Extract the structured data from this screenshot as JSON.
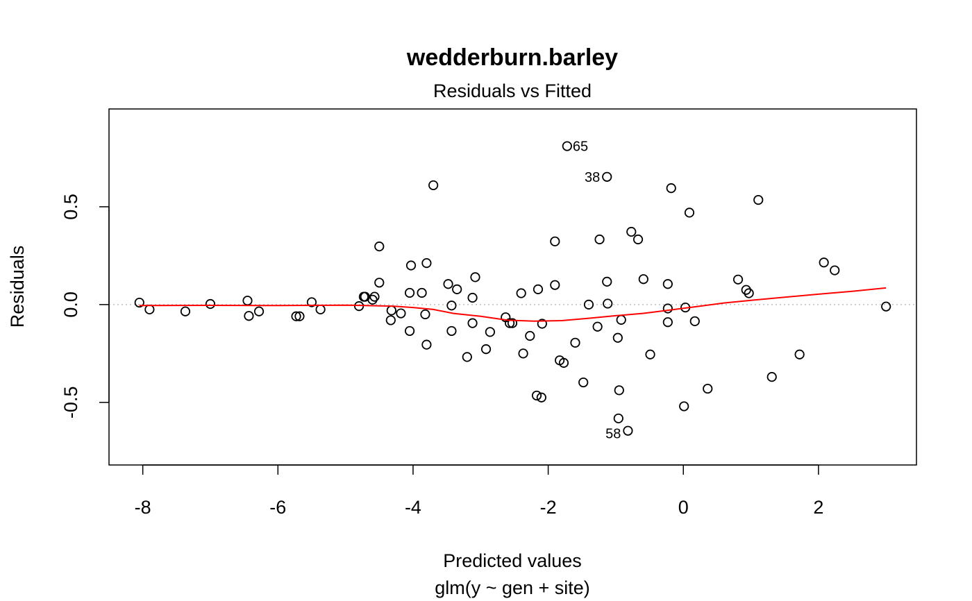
{
  "chart_data": {
    "type": "scatter",
    "title": "wedderburn.barley",
    "subtitle": "Residuals vs Fitted",
    "xlabel": "Predicted values",
    "xlabel2": "glm(y ~ gen + site)",
    "ylabel": "Residuals",
    "xlim": [
      -8.5,
      3.45
    ],
    "ylim": [
      -0.82,
      1.0
    ],
    "xticks": [
      -8,
      -6,
      -4,
      -2,
      0,
      2
    ],
    "xtick_labels": [
      "-8",
      "-6",
      "-4",
      "-2",
      "0",
      "2"
    ],
    "yticks": [
      -0.5,
      0.0,
      0.5
    ],
    "ytick_labels": [
      "-0.5",
      "0.0",
      "0.5"
    ],
    "reference_line": 0,
    "colors": {
      "points": "#000000",
      "smooth": "#ff0000",
      "reference": "#bebebe"
    },
    "points": [
      {
        "x": -8.05,
        "y": 0.01
      },
      {
        "x": -7.9,
        "y": -0.025
      },
      {
        "x": -7.37,
        "y": -0.035
      },
      {
        "x": -7.0,
        "y": 0.003
      },
      {
        "x": -6.45,
        "y": 0.02
      },
      {
        "x": -6.43,
        "y": -0.058
      },
      {
        "x": -6.28,
        "y": -0.035
      },
      {
        "x": -5.73,
        "y": -0.06
      },
      {
        "x": -5.68,
        "y": -0.06
      },
      {
        "x": -5.5,
        "y": 0.012
      },
      {
        "x": -5.37,
        "y": -0.025
      },
      {
        "x": -4.8,
        "y": -0.008
      },
      {
        "x": -4.73,
        "y": 0.04
      },
      {
        "x": -4.71,
        "y": 0.04
      },
      {
        "x": -4.6,
        "y": 0.025
      },
      {
        "x": -4.57,
        "y": 0.04
      },
      {
        "x": -4.5,
        "y": 0.297
      },
      {
        "x": -4.5,
        "y": 0.112
      },
      {
        "x": -4.33,
        "y": -0.08
      },
      {
        "x": -4.32,
        "y": -0.03
      },
      {
        "x": -4.18,
        "y": -0.045
      },
      {
        "x": -4.03,
        "y": 0.2
      },
      {
        "x": -4.05,
        "y": 0.06
      },
      {
        "x": -4.05,
        "y": -0.135
      },
      {
        "x": -3.87,
        "y": 0.06
      },
      {
        "x": -3.82,
        "y": -0.05
      },
      {
        "x": -3.8,
        "y": 0.212
      },
      {
        "x": -3.8,
        "y": -0.205
      },
      {
        "x": -3.7,
        "y": 0.61
      },
      {
        "x": -3.48,
        "y": 0.105
      },
      {
        "x": -3.43,
        "y": -0.135
      },
      {
        "x": -3.43,
        "y": -0.005
      },
      {
        "x": -3.35,
        "y": 0.078
      },
      {
        "x": -3.2,
        "y": -0.268
      },
      {
        "x": -3.12,
        "y": 0.035
      },
      {
        "x": -3.12,
        "y": -0.095
      },
      {
        "x": -3.08,
        "y": 0.14
      },
      {
        "x": -2.92,
        "y": -0.228
      },
      {
        "x": -2.86,
        "y": -0.14
      },
      {
        "x": -2.63,
        "y": -0.065
      },
      {
        "x": -2.57,
        "y": -0.095
      },
      {
        "x": -2.53,
        "y": -0.095
      },
      {
        "x": -2.4,
        "y": 0.058
      },
      {
        "x": -2.37,
        "y": -0.25
      },
      {
        "x": -2.27,
        "y": -0.16
      },
      {
        "x": -2.17,
        "y": -0.465
      },
      {
        "x": -2.15,
        "y": 0.078
      },
      {
        "x": -2.1,
        "y": -0.475
      },
      {
        "x": -2.09,
        "y": -0.098
      },
      {
        "x": -1.9,
        "y": 0.323
      },
      {
        "x": -1.9,
        "y": 0.1
      },
      {
        "x": -1.83,
        "y": -0.285
      },
      {
        "x": -1.77,
        "y": -0.298
      },
      {
        "x": -1.72,
        "y": 0.81,
        "label": "65"
      },
      {
        "x": -1.6,
        "y": -0.195
      },
      {
        "x": -1.48,
        "y": -0.398
      },
      {
        "x": -1.4,
        "y": 0.0
      },
      {
        "x": -1.27,
        "y": -0.113
      },
      {
        "x": -1.24,
        "y": 0.333
      },
      {
        "x": -1.13,
        "y": 0.653,
        "label": "38"
      },
      {
        "x": -1.13,
        "y": 0.117
      },
      {
        "x": -1.12,
        "y": 0.005
      },
      {
        "x": -0.97,
        "y": -0.17
      },
      {
        "x": -0.96,
        "y": -0.582
      },
      {
        "x": -0.95,
        "y": -0.438
      },
      {
        "x": -0.92,
        "y": -0.078
      },
      {
        "x": -0.82,
        "y": -0.645,
        "label": "58"
      },
      {
        "x": -0.77,
        "y": 0.372
      },
      {
        "x": -0.67,
        "y": 0.333
      },
      {
        "x": -0.59,
        "y": 0.13
      },
      {
        "x": -0.49,
        "y": -0.255
      },
      {
        "x": -0.23,
        "y": 0.105
      },
      {
        "x": -0.23,
        "y": -0.09
      },
      {
        "x": -0.23,
        "y": -0.02
      },
      {
        "x": -0.18,
        "y": 0.595
      },
      {
        "x": 0.01,
        "y": -0.52
      },
      {
        "x": 0.03,
        "y": -0.015
      },
      {
        "x": 0.09,
        "y": 0.47
      },
      {
        "x": 0.17,
        "y": -0.085
      },
      {
        "x": 0.36,
        "y": -0.43
      },
      {
        "x": 0.81,
        "y": 0.128
      },
      {
        "x": 0.93,
        "y": 0.075
      },
      {
        "x": 0.97,
        "y": 0.058
      },
      {
        "x": 1.11,
        "y": 0.535
      },
      {
        "x": 1.31,
        "y": -0.37
      },
      {
        "x": 1.72,
        "y": -0.255
      },
      {
        "x": 2.08,
        "y": 0.215
      },
      {
        "x": 2.24,
        "y": 0.175
      },
      {
        "x": 3.0,
        "y": -0.01
      }
    ],
    "smooth_line": [
      {
        "x": -8.05,
        "y": -0.005
      },
      {
        "x": -7.0,
        "y": -0.004
      },
      {
        "x": -6.0,
        "y": -0.005
      },
      {
        "x": -5.0,
        "y": -0.003
      },
      {
        "x": -4.3,
        "y": -0.008
      },
      {
        "x": -4.0,
        "y": -0.015
      },
      {
        "x": -3.7,
        "y": -0.025
      },
      {
        "x": -3.4,
        "y": -0.045
      },
      {
        "x": -3.0,
        "y": -0.06
      },
      {
        "x": -2.6,
        "y": -0.08
      },
      {
        "x": -2.2,
        "y": -0.085
      },
      {
        "x": -1.8,
        "y": -0.082
      },
      {
        "x": -1.4,
        "y": -0.07
      },
      {
        "x": -1.0,
        "y": -0.057
      },
      {
        "x": -0.6,
        "y": -0.045
      },
      {
        "x": -0.2,
        "y": -0.028
      },
      {
        "x": 0.2,
        "y": -0.01
      },
      {
        "x": 0.6,
        "y": 0.008
      },
      {
        "x": 1.0,
        "y": 0.022
      },
      {
        "x": 1.5,
        "y": 0.038
      },
      {
        "x": 2.0,
        "y": 0.053
      },
      {
        "x": 2.5,
        "y": 0.068
      },
      {
        "x": 3.0,
        "y": 0.085
      }
    ],
    "point_labels": [
      "65",
      "38",
      "58"
    ]
  }
}
